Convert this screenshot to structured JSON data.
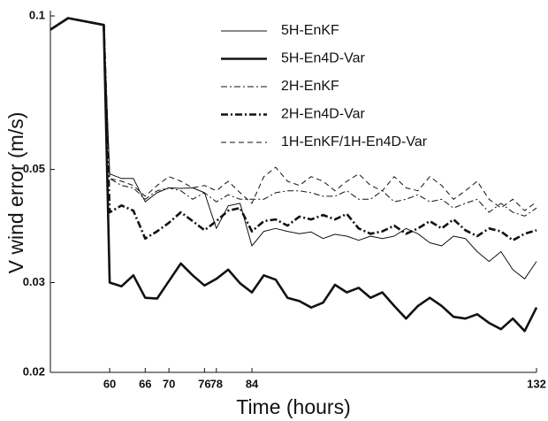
{
  "chart_data": {
    "type": "line",
    "xlabel": "Time (hours)",
    "ylabel": "V wind error (m/s)",
    "xlim": [
      50,
      132
    ],
    "xticks": [
      60,
      66,
      70,
      76,
      78,
      84,
      132
    ],
    "ylim": [
      0.02,
      0.1
    ],
    "yticks": [
      0.02,
      0.03,
      0.05,
      0.1
    ],
    "log_y": true,
    "x": [
      50,
      53,
      59,
      60,
      62,
      64,
      66,
      68,
      70,
      72,
      74,
      76,
      78,
      80,
      82,
      84,
      86,
      88,
      90,
      92,
      94,
      96,
      98,
      100,
      102,
      104,
      106,
      108,
      110,
      112,
      114,
      116,
      118,
      120,
      122,
      124,
      126,
      128,
      130,
      132
    ],
    "series": [
      {
        "name": "5H-EnKF",
        "color": "#111111",
        "width": 1,
        "dash": "none",
        "values": [
          0.094,
          0.099,
          0.096,
          0.049,
          0.048,
          0.048,
          0.0432,
          0.045,
          0.046,
          0.0459,
          0.046,
          0.045,
          0.0383,
          0.0424,
          0.0429,
          0.0354,
          0.0378,
          0.0383,
          0.0378,
          0.0374,
          0.0377,
          0.0366,
          0.0373,
          0.037,
          0.0363,
          0.037,
          0.0366,
          0.037,
          0.0383,
          0.0374,
          0.0359,
          0.0354,
          0.037,
          0.0366,
          0.0345,
          0.033,
          0.0345,
          0.0318,
          0.0305,
          0.033
        ]
      },
      {
        "name": "5H-En4D-Var",
        "color": "#111111",
        "width": 2.6,
        "dash": "none",
        "values": [
          0.094,
          0.099,
          0.096,
          0.03,
          0.0295,
          0.031,
          0.028,
          0.0279,
          0.0302,
          0.0327,
          0.031,
          0.0296,
          0.0305,
          0.0318,
          0.0299,
          0.0287,
          0.031,
          0.0304,
          0.028,
          0.0276,
          0.0268,
          0.0274,
          0.0297,
          0.0287,
          0.0293,
          0.028,
          0.0287,
          0.027,
          0.0255,
          0.027,
          0.028,
          0.027,
          0.0257,
          0.0255,
          0.026,
          0.025,
          0.0243,
          0.0255,
          0.0241,
          0.0268
        ]
      },
      {
        "name": "2H-EnKF",
        "color": "#111111",
        "width": 1,
        "dash": "7 3 2 3",
        "values": [
          0.094,
          0.099,
          0.096,
          0.048,
          0.0465,
          0.046,
          0.0437,
          0.0454,
          0.046,
          0.0454,
          0.0437,
          0.045,
          0.0432,
          0.0446,
          0.0437,
          0.0437,
          0.0437,
          0.045,
          0.0454,
          0.0454,
          0.045,
          0.0443,
          0.0443,
          0.0454,
          0.0437,
          0.0437,
          0.0454,
          0.0432,
          0.0437,
          0.0446,
          0.0432,
          0.0437,
          0.042,
          0.0429,
          0.0437,
          0.0412,
          0.0429,
          0.0412,
          0.0405,
          0.042
        ]
      },
      {
        "name": "2H-En4D-Var",
        "color": "#111111",
        "width": 2.6,
        "dash": "8 3 2 3",
        "values": [
          0.094,
          0.099,
          0.096,
          0.0412,
          0.0425,
          0.0415,
          0.0366,
          0.0378,
          0.0393,
          0.0412,
          0.0396,
          0.038,
          0.0396,
          0.0415,
          0.042,
          0.0378,
          0.0396,
          0.0399,
          0.0388,
          0.0404,
          0.0399,
          0.0407,
          0.0399,
          0.0409,
          0.0383,
          0.0374,
          0.0378,
          0.0388,
          0.0374,
          0.0383,
          0.0396,
          0.0383,
          0.0399,
          0.038,
          0.037,
          0.0383,
          0.0378,
          0.0363,
          0.0374,
          0.038
        ]
      },
      {
        "name": "1H-EnKF/1H-En4D-Var",
        "color": "#111111",
        "width": 1,
        "dash": "6 4",
        "values": [
          0.094,
          0.099,
          0.096,
          0.048,
          0.0474,
          0.0465,
          0.0443,
          0.0465,
          0.0484,
          0.0474,
          0.046,
          0.0465,
          0.0454,
          0.0474,
          0.045,
          0.0429,
          0.0484,
          0.0505,
          0.0474,
          0.0465,
          0.0484,
          0.0474,
          0.0454,
          0.0474,
          0.049,
          0.0465,
          0.0454,
          0.0484,
          0.046,
          0.0454,
          0.0484,
          0.0465,
          0.0437,
          0.0454,
          0.0474,
          0.0437,
          0.042,
          0.0437,
          0.0415,
          0.0432
        ]
      }
    ]
  }
}
